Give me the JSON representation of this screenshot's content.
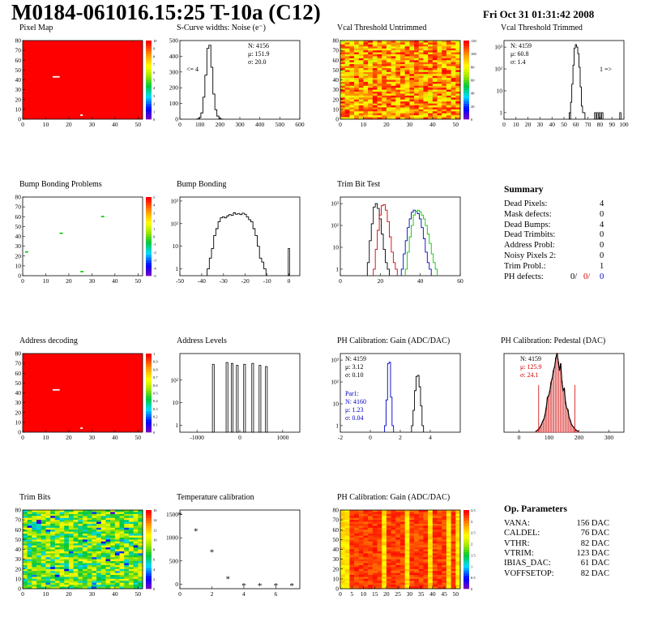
{
  "header": {
    "title": "M0184-061016.15:25 T-10a (C12)",
    "date": "Fri Oct 31 01:31:42 2008"
  },
  "colors": {
    "heat_red": "#ff0000",
    "line_red": "#d40000",
    "line_blue": "#0000c8",
    "line_green": "#00c800"
  },
  "chart_data": [
    {
      "id": "pixel-map",
      "type": "heatmap",
      "title": "Pixel Map",
      "xticks": [
        "0",
        "10",
        "20",
        "30",
        "40",
        "50"
      ],
      "yticks": [
        "0",
        "10",
        "20",
        "30",
        "40",
        "50",
        "60",
        "70",
        "80"
      ],
      "xlim": [
        0,
        52
      ],
      "ylim": [
        0,
        80
      ],
      "fill": "uniform",
      "palette_max": 10,
      "colorbar_ticks": [
        "0",
        "1",
        "2",
        "3",
        "4",
        "5",
        "6",
        "7",
        "8",
        "9",
        "10"
      ],
      "dead_pixels": [
        [
          13,
          43
        ],
        [
          14,
          43
        ],
        [
          15,
          43
        ],
        [
          25,
          4
        ]
      ]
    },
    {
      "id": "scurve",
      "type": "line",
      "title": "S-Curve widths: Noise (e⁻)",
      "xlim": [
        0,
        600
      ],
      "xticks": [
        "0",
        "100",
        "200",
        "300",
        "400",
        "500",
        "600"
      ],
      "ylim": [
        0,
        500
      ],
      "yticks": [
        "0",
        "100",
        "200",
        "300",
        "400",
        "500"
      ],
      "stats": [
        "N: 4156",
        "μ: 151.9",
        "σ: 20.0"
      ],
      "underflow_label": "<= 4",
      "x": [
        90,
        100,
        110,
        120,
        130,
        140,
        150,
        160,
        170,
        180,
        190,
        200,
        210
      ],
      "y": [
        2,
        10,
        40,
        140,
        280,
        450,
        470,
        330,
        160,
        60,
        20,
        5,
        1
      ]
    },
    {
      "id": "vcal-untrimmed",
      "type": "heatmap",
      "title": "Vcal Threshold Untrimmed",
      "xticks": [
        "0",
        "10",
        "20",
        "30",
        "40",
        "50"
      ],
      "yticks": [
        "0",
        "10",
        "20",
        "30",
        "40",
        "50",
        "60",
        "70",
        "80"
      ],
      "xlim": [
        0,
        52
      ],
      "ylim": [
        0,
        80
      ],
      "fill": "noise",
      "palette_max": 120,
      "colorbar_ticks": [
        "0",
        "20",
        "40",
        "60",
        "80",
        "100",
        "120"
      ]
    },
    {
      "id": "vcal-trimmed",
      "type": "line",
      "title": "Vcal Threshold Trimmed",
      "yscale": "log",
      "xlim": [
        0,
        100
      ],
      "xticks": [
        "0",
        "10",
        "20",
        "30",
        "40",
        "50",
        "60",
        "70",
        "80",
        "90",
        "100"
      ],
      "ylim": [
        0.5,
        2000
      ],
      "yticks": [
        "1",
        "10",
        "10²",
        "10³"
      ],
      "stats": [
        "N: 4159",
        "μ: 60.8",
        "σ: 1.4"
      ],
      "overflow_label": "1 =>",
      "x": [
        55,
        56,
        57,
        58,
        59,
        60,
        61,
        62,
        63,
        64,
        65,
        66,
        67
      ],
      "y": [
        1,
        3,
        20,
        150,
        900,
        1300,
        1000,
        500,
        120,
        15,
        2,
        1,
        1
      ],
      "spikes": [
        [
          55,
          1
        ],
        [
          76,
          1
        ],
        [
          78,
          1
        ],
        [
          80,
          1
        ],
        [
          82,
          1
        ],
        [
          97,
          1
        ]
      ]
    },
    {
      "id": "bump-problems",
      "type": "heatmap",
      "title": "Bump Bonding Problems",
      "xticks": [
        "0",
        "10",
        "20",
        "30",
        "40",
        "50"
      ],
      "yticks": [
        "0",
        "10",
        "20",
        "30",
        "40",
        "50",
        "60",
        "70",
        "80"
      ],
      "xlim": [
        0,
        52
      ],
      "ylim": [
        0,
        80
      ],
      "fill": "empty",
      "palette_max": 5,
      "colorbar_ticks": [
        "-5",
        "-4",
        "-3",
        "-2",
        "-1",
        "0",
        "1",
        "2",
        "3",
        "4",
        "5"
      ],
      "marks": [
        [
          34,
          60
        ],
        [
          16,
          43
        ],
        [
          1,
          24
        ],
        [
          25,
          4
        ]
      ]
    },
    {
      "id": "bump-bonding",
      "type": "line",
      "title": "Bump Bonding",
      "yscale": "log",
      "xlim": [
        -50,
        5
      ],
      "xticks": [
        "-50",
        "-40",
        "-30",
        "-20",
        "-10",
        "0"
      ],
      "ylim": [
        0.5,
        1500
      ],
      "yticks": [
        "1",
        "10",
        "10²",
        "10³"
      ],
      "x": [
        -37,
        -36,
        -35,
        -34,
        -33,
        -32,
        -31,
        -30,
        -29,
        -28,
        -27,
        -26,
        -25,
        -24,
        -23,
        -22,
        -21,
        -20,
        -19,
        -18,
        -17,
        -16,
        -15,
        -14,
        -13,
        -12,
        -11
      ],
      "y": [
        1,
        3,
        8,
        30,
        60,
        120,
        180,
        200,
        180,
        220,
        250,
        230,
        300,
        260,
        280,
        250,
        290,
        260,
        200,
        150,
        120,
        60,
        30,
        10,
        3,
        2,
        1
      ],
      "spikes": [
        [
          0,
          8
        ]
      ]
    },
    {
      "id": "trim-bit-test",
      "type": "line",
      "title": "Trim Bit Test",
      "yscale": "log",
      "xlim": [
        0,
        60
      ],
      "xticks": [
        "0",
        "20",
        "40",
        "60"
      ],
      "ylim": [
        0.5,
        2000
      ],
      "yticks": [
        "1",
        "10",
        "10²",
        "10³"
      ],
      "series": [
        {
          "color": "line_black",
          "x": [
            14,
            15,
            16,
            17,
            18,
            19,
            20,
            21,
            22,
            23,
            24
          ],
          "y": [
            2,
            20,
            120,
            700,
            1000,
            600,
            200,
            40,
            8,
            2,
            1
          ]
        },
        {
          "color": "line_red",
          "x": [
            17,
            18,
            19,
            20,
            21,
            22,
            23,
            24,
            25,
            26,
            27,
            28
          ],
          "y": [
            1,
            8,
            60,
            300,
            800,
            900,
            500,
            150,
            30,
            6,
            2,
            1
          ]
        },
        {
          "color": "line_blue",
          "x": [
            31,
            32,
            33,
            34,
            35,
            36,
            37,
            38,
            39,
            40,
            41,
            42,
            43,
            44,
            45
          ],
          "y": [
            1,
            5,
            20,
            80,
            200,
            400,
            500,
            450,
            350,
            200,
            80,
            25,
            6,
            2,
            1
          ]
        },
        {
          "color": "line_green",
          "x": [
            33,
            34,
            35,
            36,
            37,
            38,
            39,
            40,
            41,
            42,
            43,
            44,
            45,
            46,
            47,
            48
          ],
          "y": [
            1,
            6,
            30,
            100,
            300,
            450,
            500,
            420,
            300,
            200,
            100,
            40,
            15,
            5,
            2,
            1
          ]
        }
      ]
    },
    {
      "id": "address-decoding",
      "type": "heatmap",
      "title": "Address decoding",
      "xticks": [
        "0",
        "10",
        "20",
        "30",
        "40",
        "50"
      ],
      "yticks": [
        "0",
        "10",
        "20",
        "30",
        "40",
        "50",
        "60",
        "70",
        "80"
      ],
      "xlim": [
        0,
        52
      ],
      "ylim": [
        0,
        80
      ],
      "fill": "uniform",
      "palette_max": 1,
      "colorbar_ticks": [
        "0",
        "0.1",
        "0.2",
        "0.3",
        "0.4",
        "0.5",
        "0.6",
        "0.7",
        "0.8",
        "0.9",
        "1"
      ],
      "dead_pixels": [
        [
          13,
          43
        ],
        [
          14,
          43
        ],
        [
          15,
          43
        ],
        [
          25,
          4
        ]
      ]
    },
    {
      "id": "address-levels",
      "type": "line",
      "title": "Address Levels",
      "yscale": "log",
      "xlim": [
        -1400,
        1400
      ],
      "xticks": [
        "-1000",
        "0",
        "1000"
      ],
      "ylim": [
        0.5,
        1500
      ],
      "yticks": [
        "1",
        "10",
        "10²"
      ],
      "spikes": [
        [
          -620,
          500
        ],
        [
          -300,
          600
        ],
        [
          -180,
          550
        ],
        [
          -60,
          450
        ],
        [
          110,
          500
        ],
        [
          300,
          550
        ],
        [
          470,
          450
        ],
        [
          620,
          400
        ]
      ]
    },
    {
      "id": "ph-gain",
      "type": "line",
      "title": "PH Calibration: Gain (ADC/DAC)",
      "yscale": "log",
      "xlim": [
        -2,
        6
      ],
      "xticks": [
        "-2",
        "0",
        "2",
        "4"
      ],
      "ylim": [
        0.5,
        2000
      ],
      "yticks": [
        "1",
        "10",
        "10²",
        "10³"
      ],
      "stats": [
        "N: 4159",
        "μ: 3.12",
        "σ: 0.10"
      ],
      "stats2": [
        "Par1:",
        "N: 4160",
        "μ: 1.23",
        "σ: 0.04"
      ],
      "series": [
        {
          "color": "line_black",
          "x": [
            2.8,
            2.9,
            3.0,
            3.1,
            3.2,
            3.3,
            3.4,
            3.5
          ],
          "y": [
            1,
            5,
            40,
            180,
            200,
            60,
            8,
            1
          ]
        },
        {
          "color": "line_blue",
          "x": [
            1.0,
            1.1,
            1.2,
            1.3,
            1.4,
            1.5
          ],
          "y": [
            1,
            15,
            700,
            800,
            20,
            1
          ]
        }
      ]
    },
    {
      "id": "ph-pedestal",
      "type": "bar",
      "title": "PH Calibration: Pedestal (DAC)",
      "xlim": [
        -50,
        350
      ],
      "xticks": [
        "0",
        "100",
        "200",
        "300"
      ],
      "ylim": [
        0,
        260
      ],
      "stats": [
        "N: 4159",
        "μ: 125.9",
        "σ: 24.1"
      ],
      "mean": 125.9,
      "sigma": 24.1
    },
    {
      "id": "trim-bits",
      "type": "heatmap",
      "title": "Trim Bits",
      "xticks": [
        "0",
        "10",
        "20",
        "30",
        "40",
        "50"
      ],
      "yticks": [
        "0",
        "10",
        "20",
        "30",
        "40",
        "50",
        "60",
        "70",
        "80"
      ],
      "xlim": [
        0,
        52
      ],
      "ylim": [
        0,
        80
      ],
      "fill": "trim",
      "palette_max": 16,
      "colorbar_ticks": [
        "0",
        "2",
        "4",
        "6",
        "8",
        "10",
        "12",
        "14",
        "16"
      ]
    },
    {
      "id": "temp-cal",
      "type": "scatter",
      "title": "Temperature calibration",
      "xlim": [
        0,
        7.5
      ],
      "xticks": [
        "0",
        "2",
        "4",
        "6"
      ],
      "ylim": [
        -100,
        1600
      ],
      "yticks": [
        "0",
        "500",
        "1000",
        "1500"
      ],
      "x": [
        0,
        1,
        2,
        3,
        4,
        5,
        6,
        7
      ],
      "y": [
        1500,
        1150,
        700,
        120,
        -30,
        -30,
        -30,
        -30
      ]
    },
    {
      "id": "ph-gain-map",
      "type": "heatmap",
      "title": "PH Calibration: Gain (ADC/DAC)",
      "xticks": [
        "0",
        "5",
        "10",
        "15",
        "20",
        "25",
        "30",
        "35",
        "40",
        "45",
        "50"
      ],
      "yticks": [
        "0",
        "10",
        "20",
        "30",
        "40",
        "50",
        "60",
        "70",
        "80"
      ],
      "xlim": [
        0,
        52
      ],
      "ylim": [
        0,
        80
      ],
      "fill": "gain",
      "palette_max": 3.5,
      "colorbar_ticks": [
        "0",
        "0.5",
        "1",
        "1.5",
        "2",
        "2.5",
        "3",
        "3.5"
      ]
    }
  ],
  "summary": {
    "heading": "Summary",
    "rows": [
      {
        "label": "Dead Pixels:",
        "value": "4"
      },
      {
        "label": "Mask defects:",
        "value": "0"
      },
      {
        "label": "Dead Bumps:",
        "value": "4"
      },
      {
        "label": "Dead Trimbits:",
        "value": "0"
      },
      {
        "label": "Address Probl:",
        "value": "0"
      },
      {
        "label": "Noisy Pixels 2:",
        "value": "0"
      },
      {
        "label": "Trim Probl.:",
        "value": "1"
      }
    ],
    "ph": {
      "label": "PH defects:",
      "v1": "0/",
      "v2": "0/",
      "v3": "0"
    }
  },
  "op_params": {
    "heading": "Op. Parameters",
    "rows": [
      {
        "label": "VANA:",
        "value": "156 DAC"
      },
      {
        "label": "CALDEL:",
        "value": "76 DAC"
      },
      {
        "label": "VTHR:",
        "value": "82 DAC"
      },
      {
        "label": "VTRIM:",
        "value": "123 DAC"
      },
      {
        "label": "IBIAS_DAC:",
        "value": "61 DAC"
      },
      {
        "label": "VOFFSETOP:",
        "value": "82 DAC"
      }
    ]
  }
}
